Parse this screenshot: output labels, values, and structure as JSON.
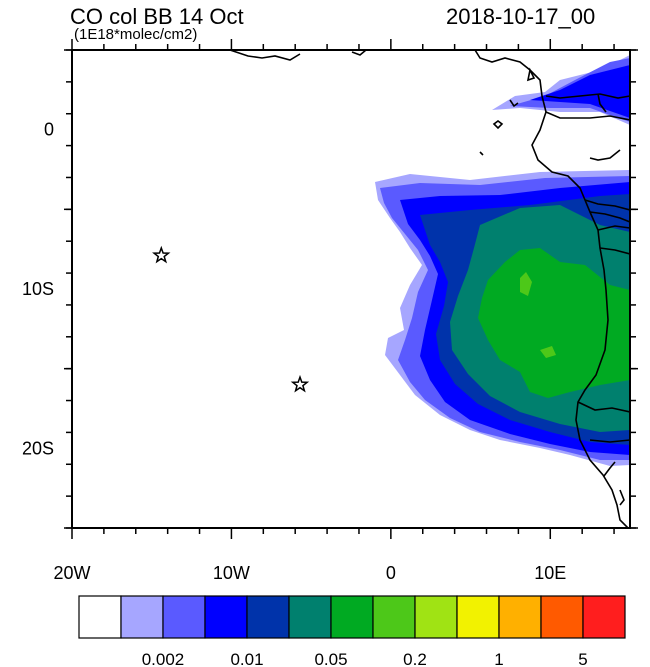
{
  "title_left": "CO col BB 14 Oct",
  "title_right": "2018-10-17_00",
  "subtitle": "(1E18*molec/cm2)",
  "map": {
    "lon_range": [
      -20,
      15
    ],
    "lat_range": [
      -25,
      5
    ],
    "x_tick_labels": [
      {
        "lon": -20,
        "label": "20W"
      },
      {
        "lon": -10,
        "label": "10W"
      },
      {
        "lon": 0,
        "label": "0"
      },
      {
        "lon": 10,
        "label": "10E"
      }
    ],
    "y_tick_labels": [
      {
        "lat": 0,
        "label": "0"
      },
      {
        "lat": -10,
        "label": "10S"
      },
      {
        "lat": -20,
        "label": "20S"
      }
    ],
    "star_markers": [
      {
        "name": "st-helena",
        "lon": -5.7,
        "lat": -16.0
      },
      {
        "name": "ascension",
        "lon": -14.4,
        "lat": -7.9
      }
    ]
  },
  "colorbar": {
    "colors": [
      "#ffffff",
      "#a6a6ff",
      "#5a5aff",
      "#0000ff",
      "#0033aa",
      "#00806e",
      "#00aa22",
      "#4dc819",
      "#a0e314",
      "#f2f200",
      "#ffb000",
      "#ff5a00",
      "#ff1e1e"
    ],
    "labels": [
      {
        "after_index": 2,
        "label": "0.002"
      },
      {
        "after_index": 4,
        "label": "0.01"
      },
      {
        "after_index": 6,
        "label": "0.05"
      },
      {
        "after_index": 8,
        "label": "0.2"
      },
      {
        "after_index": 10,
        "label": "1"
      },
      {
        "after_index": 12,
        "label": "5"
      }
    ]
  }
}
